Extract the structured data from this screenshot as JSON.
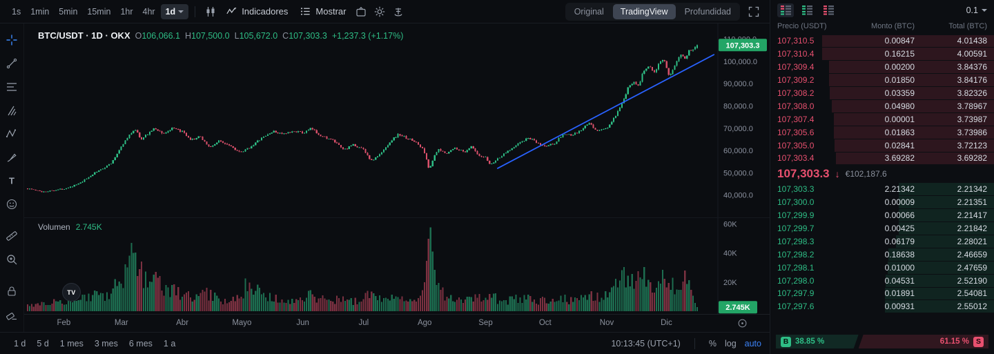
{
  "colors": {
    "green": "#2ebd85",
    "red": "#e8506f",
    "candle_up": "#2ebd85",
    "candle_down": "#d9506a",
    "tag_green": "#23a566",
    "trendline_blue": "#2962ff",
    "auto_blue": "#3b82f6"
  },
  "top_toolbar": {
    "timeframes": [
      "1s",
      "1min",
      "5min",
      "15min",
      "1hr",
      "4hr"
    ],
    "active_timeframe": "1d",
    "indicators": "Indicadores",
    "show": "Mostrar",
    "views": [
      "Original",
      "TradingView",
      "Profundidad"
    ],
    "active_view": "TradingView"
  },
  "left_tools": [
    "crosshair",
    "trendline",
    "fib-retracement",
    "pitchfork",
    "pattern",
    "brush",
    "text",
    "emoji",
    "ruler",
    "zoom",
    "lock",
    "eraser"
  ],
  "legend": {
    "title": "BTC/USDT · 1D · OKX",
    "o_label": "O",
    "o": "106,066.1",
    "h_label": "H",
    "h": "107,500.0",
    "l_label": "L",
    "l": "105,672.0",
    "c_label": "C",
    "c": "107,303.3",
    "change": "+1,237.3 (+1.17%)"
  },
  "price_tag": "107,303.3",
  "volume_legend": {
    "label": "Volumen",
    "value": "2.745K"
  },
  "volume_tag": "2.745K",
  "tv_logo": "TV",
  "chart_data": {
    "type": "candlestick",
    "title": "BTC/USDT · 1D · OKX",
    "interval": "1D",
    "exchange": "OKX",
    "last_ohlc": {
      "open": 106066.1,
      "high": 107500.0,
      "low": 105672.0,
      "close": 107303.3,
      "change": "+1,237.3 (+1.17%)"
    },
    "price_top": 117000,
    "price_bottom": 30000,
    "y_ticks": [
      {
        "v": 110000,
        "label": "110,000.0"
      },
      {
        "v": 100000,
        "label": "100,000.0"
      },
      {
        "v": 90000,
        "label": "90,000.0"
      },
      {
        "v": 80000,
        "label": "80,000.0"
      },
      {
        "v": 70000,
        "label": "70,000.0"
      },
      {
        "v": 60000,
        "label": "60,000.0"
      },
      {
        "v": 50000,
        "label": "50,000.0"
      },
      {
        "v": 40000,
        "label": "40,000.0"
      }
    ],
    "x_labels": [
      {
        "t": 0.054,
        "label": "Feb"
      },
      {
        "t": 0.14,
        "label": "Mar"
      },
      {
        "t": 0.231,
        "label": "Abr"
      },
      {
        "t": 0.32,
        "label": "Mayo"
      },
      {
        "t": 0.411,
        "label": "Jun"
      },
      {
        "t": 0.502,
        "label": "Jul"
      },
      {
        "t": 0.593,
        "label": "Ago"
      },
      {
        "t": 0.684,
        "label": "Sep"
      },
      {
        "t": 0.773,
        "label": "Oct"
      },
      {
        "t": 0.865,
        "label": "Nov"
      },
      {
        "t": 0.954,
        "label": "Dic"
      }
    ],
    "candle_count": 330,
    "close_path": [
      [
        0.0,
        43000
      ],
      [
        0.022,
        41500
      ],
      [
        0.054,
        42800
      ],
      [
        0.078,
        45200
      ],
      [
        0.098,
        49500
      ],
      [
        0.112,
        52000
      ],
      [
        0.126,
        54500
      ],
      [
        0.14,
        62000
      ],
      [
        0.152,
        66800
      ],
      [
        0.16,
        69800
      ],
      [
        0.17,
        64800
      ],
      [
        0.18,
        67800
      ],
      [
        0.19,
        69900
      ],
      [
        0.203,
        67500
      ],
      [
        0.216,
        69800
      ],
      [
        0.231,
        68500
      ],
      [
        0.243,
        64500
      ],
      [
        0.258,
        66200
      ],
      [
        0.272,
        61300
      ],
      [
        0.286,
        64300
      ],
      [
        0.302,
        62500
      ],
      [
        0.318,
        58800
      ],
      [
        0.332,
        61500
      ],
      [
        0.348,
        65200
      ],
      [
        0.366,
        68500
      ],
      [
        0.384,
        67300
      ],
      [
        0.4,
        68800
      ],
      [
        0.411,
        67800
      ],
      [
        0.424,
        69800
      ],
      [
        0.44,
        66300
      ],
      [
        0.456,
        64500
      ],
      [
        0.472,
        60300
      ],
      [
        0.487,
        62500
      ],
      [
        0.502,
        60500
      ],
      [
        0.513,
        55300
      ],
      [
        0.527,
        58300
      ],
      [
        0.542,
        64300
      ],
      [
        0.554,
        67300
      ],
      [
        0.568,
        65300
      ],
      [
        0.58,
        63800
      ],
      [
        0.592,
        60000
      ],
      [
        0.5995,
        51500
      ],
      [
        0.606,
        56500
      ],
      [
        0.613,
        60300
      ],
      [
        0.626,
        58800
      ],
      [
        0.639,
        61300
      ],
      [
        0.652,
        59300
      ],
      [
        0.663,
        61800
      ],
      [
        0.674,
        57300
      ],
      [
        0.684,
        56800
      ],
      [
        0.691,
        53600
      ],
      [
        0.702,
        56300
      ],
      [
        0.713,
        58800
      ],
      [
        0.724,
        61300
      ],
      [
        0.737,
        63800
      ],
      [
        0.749,
        65700
      ],
      [
        0.761,
        63300
      ],
      [
        0.773,
        61800
      ],
      [
        0.787,
        63300
      ],
      [
        0.8,
        67300
      ],
      [
        0.813,
        66800
      ],
      [
        0.826,
        68800
      ],
      [
        0.838,
        72300
      ],
      [
        0.851,
        68800
      ],
      [
        0.865,
        70000
      ],
      [
        0.874,
        73500
      ],
      [
        0.886,
        79500
      ],
      [
        0.896,
        87500
      ],
      [
        0.905,
        91500
      ],
      [
        0.912,
        89000
      ],
      [
        0.92,
        95500
      ],
      [
        0.928,
        98500
      ],
      [
        0.936,
        95500
      ],
      [
        0.944,
        99300
      ],
      [
        0.95,
        100800
      ],
      [
        0.958,
        92800
      ],
      [
        0.966,
        98300
      ],
      [
        0.974,
        103300
      ],
      [
        0.982,
        101800
      ],
      [
        0.99,
        105300
      ],
      [
        0.996,
        106300
      ],
      [
        1.0,
        107303
      ]
    ],
    "trendline": {
      "t1": 0.702,
      "p1": 52000,
      "t2": 1.025,
      "p2": 103000,
      "color": "#2962ff"
    },
    "volume_max": 64,
    "volume_ticks": [
      {
        "v": 60,
        "label": "60K"
      },
      {
        "v": 40,
        "label": "40K"
      },
      {
        "v": 20,
        "label": "20K"
      }
    ],
    "volume_path": [
      [
        0.0,
        5
      ],
      [
        0.04,
        6
      ],
      [
        0.07,
        7
      ],
      [
        0.098,
        12
      ],
      [
        0.112,
        9
      ],
      [
        0.126,
        13
      ],
      [
        0.14,
        22
      ],
      [
        0.152,
        34
      ],
      [
        0.16,
        42
      ],
      [
        0.17,
        26
      ],
      [
        0.182,
        18
      ],
      [
        0.19,
        24
      ],
      [
        0.205,
        15
      ],
      [
        0.22,
        13
      ],
      [
        0.231,
        11
      ],
      [
        0.25,
        9
      ],
      [
        0.27,
        12
      ],
      [
        0.29,
        8
      ],
      [
        0.302,
        7
      ],
      [
        0.318,
        10
      ],
      [
        0.332,
        22
      ],
      [
        0.348,
        12
      ],
      [
        0.366,
        9
      ],
      [
        0.384,
        7
      ],
      [
        0.4,
        8
      ],
      [
        0.411,
        9
      ],
      [
        0.424,
        11
      ],
      [
        0.44,
        8
      ],
      [
        0.456,
        7
      ],
      [
        0.472,
        9
      ],
      [
        0.487,
        7
      ],
      [
        0.502,
        8
      ],
      [
        0.513,
        13
      ],
      [
        0.527,
        9
      ],
      [
        0.542,
        10
      ],
      [
        0.554,
        8
      ],
      [
        0.568,
        7
      ],
      [
        0.58,
        6
      ],
      [
        0.592,
        12
      ],
      [
        0.601,
        62
      ],
      [
        0.608,
        24
      ],
      [
        0.616,
        15
      ],
      [
        0.626,
        10
      ],
      [
        0.639,
        8
      ],
      [
        0.652,
        7
      ],
      [
        0.663,
        8
      ],
      [
        0.674,
        9
      ],
      [
        0.684,
        8
      ],
      [
        0.691,
        11
      ],
      [
        0.702,
        8
      ],
      [
        0.713,
        7
      ],
      [
        0.724,
        8
      ],
      [
        0.737,
        9
      ],
      [
        0.749,
        8
      ],
      [
        0.761,
        7
      ],
      [
        0.773,
        8
      ],
      [
        0.787,
        6
      ],
      [
        0.8,
        9
      ],
      [
        0.813,
        7
      ],
      [
        0.826,
        9
      ],
      [
        0.838,
        12
      ],
      [
        0.851,
        10
      ],
      [
        0.864,
        11
      ],
      [
        0.874,
        17
      ],
      [
        0.884,
        22
      ],
      [
        0.894,
        26
      ],
      [
        0.903,
        20
      ],
      [
        0.912,
        28
      ],
      [
        0.92,
        24
      ],
      [
        0.928,
        18
      ],
      [
        0.936,
        14
      ],
      [
        0.944,
        30
      ],
      [
        0.95,
        17
      ],
      [
        0.958,
        25
      ],
      [
        0.966,
        14
      ],
      [
        0.974,
        20
      ],
      [
        0.982,
        28
      ],
      [
        0.99,
        12
      ],
      [
        0.996,
        6
      ],
      [
        1.0,
        2.745
      ]
    ],
    "last_volume": 2.745
  },
  "bottom_bar": {
    "ranges": [
      "1 d",
      "5 d",
      "1 mes",
      "3 mes",
      "6 mes",
      "1 a"
    ],
    "clock": "10:13:45 (UTC+1)",
    "percent": "%",
    "log": "log",
    "auto": "auto"
  },
  "orderbook": {
    "mode_icons": [
      "book-both",
      "book-bids",
      "book-asks"
    ],
    "precision": "0.1",
    "headers": [
      "Precio (USDT)",
      "Monto (BTC)",
      "Total (BTC)"
    ],
    "asks": [
      [
        "107,310.5",
        "0.00847",
        "4.01438"
      ],
      [
        "107,310.4",
        "0.16215",
        "4.00591"
      ],
      [
        "107,309.4",
        "0.00200",
        "3.84376"
      ],
      [
        "107,309.2",
        "0.01850",
        "3.84176"
      ],
      [
        "107,308.2",
        "0.03359",
        "3.82326"
      ],
      [
        "107,308.0",
        "0.04980",
        "3.78967"
      ],
      [
        "107,307.4",
        "0.00001",
        "3.73987"
      ],
      [
        "107,305.6",
        "0.01863",
        "3.73986"
      ],
      [
        "107,305.0",
        "0.02841",
        "3.72123"
      ],
      [
        "107,303.4",
        "3.69282",
        "3.69282"
      ]
    ],
    "last_price": "107,303.3",
    "direction_arrow": "↓",
    "fiat_value": "€102,187.6",
    "bids": [
      [
        "107,303.3",
        "2.21342",
        "2.21342"
      ],
      [
        "107,300.0",
        "0.00009",
        "2.21351"
      ],
      [
        "107,299.9",
        "0.00066",
        "2.21417"
      ],
      [
        "107,299.7",
        "0.00425",
        "2.21842"
      ],
      [
        "107,298.3",
        "0.06179",
        "2.28021"
      ],
      [
        "107,298.2",
        "0.18638",
        "2.46659"
      ],
      [
        "107,298.1",
        "0.01000",
        "2.47659"
      ],
      [
        "107,298.0",
        "0.04531",
        "2.52190"
      ],
      [
        "107,297.9",
        "0.01891",
        "2.54081"
      ],
      [
        "107,297.6",
        "0.00931",
        "2.55012"
      ]
    ],
    "max_total": 4.01438,
    "depth_max_width_pct": 77,
    "buy_label": "B",
    "buy_pct": "38.85 %",
    "buy_pct_value": 38.85,
    "sell_pct": "61.15 %",
    "sell_pct_value": 61.15,
    "sell_label": "S"
  }
}
